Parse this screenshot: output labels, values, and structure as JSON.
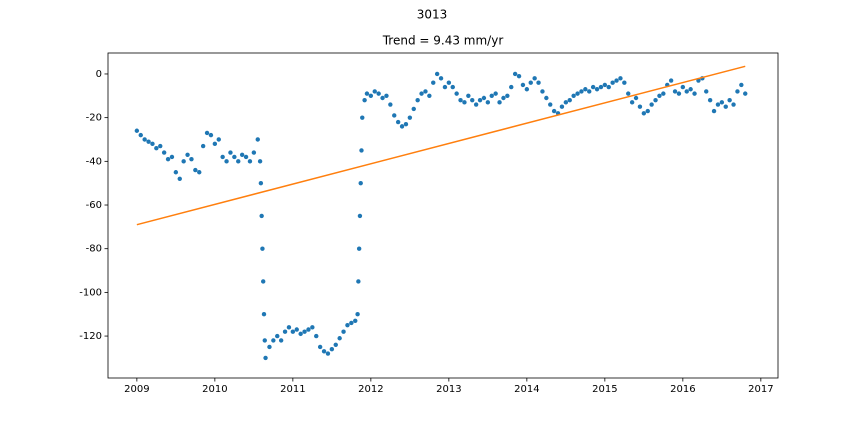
{
  "chart_data": {
    "type": "scatter",
    "suptitle": "3013",
    "title": "Trend = 9.43 mm/yr",
    "xlim": [
      2008.63,
      2017.22
    ],
    "ylim": [
      -139.2,
      9.6
    ],
    "xticks": [
      2009,
      2010,
      2011,
      2012,
      2013,
      2014,
      2015,
      2016,
      2017
    ],
    "yticks": [
      -120,
      -100,
      -80,
      -60,
      -40,
      -20,
      0
    ],
    "grid": false,
    "series": [
      {
        "kind": "points",
        "color": "#1f77b4",
        "x": [
          2009.0,
          2009.05,
          2009.1,
          2009.15,
          2009.2,
          2009.25,
          2009.3,
          2009.35,
          2009.4,
          2009.45,
          2009.5,
          2009.55,
          2009.6,
          2009.65,
          2009.7,
          2009.75,
          2009.8,
          2009.85,
          2009.9,
          2009.95,
          2010.0,
          2010.05,
          2010.1,
          2010.15,
          2010.2,
          2010.25,
          2010.3,
          2010.35,
          2010.4,
          2010.45,
          2010.5,
          2010.55,
          2010.58,
          2010.59,
          2010.6,
          2010.61,
          2010.62,
          2010.63,
          2010.64,
          2010.65,
          2010.7,
          2010.75,
          2010.8,
          2010.85,
          2010.9,
          2010.95,
          2011.0,
          2011.05,
          2011.1,
          2011.15,
          2011.2,
          2011.25,
          2011.3,
          2011.35,
          2011.4,
          2011.45,
          2011.5,
          2011.55,
          2011.6,
          2011.65,
          2011.7,
          2011.75,
          2011.8,
          2011.83,
          2011.84,
          2011.85,
          2011.86,
          2011.87,
          2011.88,
          2011.89,
          2011.92,
          2011.95,
          2012.0,
          2012.05,
          2012.1,
          2012.15,
          2012.2,
          2012.25,
          2012.3,
          2012.35,
          2012.4,
          2012.45,
          2012.5,
          2012.55,
          2012.6,
          2012.65,
          2012.7,
          2012.75,
          2012.8,
          2012.85,
          2012.9,
          2012.95,
          2013.0,
          2013.05,
          2013.1,
          2013.15,
          2013.2,
          2013.25,
          2013.3,
          2013.35,
          2013.4,
          2013.45,
          2013.5,
          2013.55,
          2013.6,
          2013.65,
          2013.7,
          2013.75,
          2013.8,
          2013.85,
          2013.9,
          2013.95,
          2014.0,
          2014.05,
          2014.1,
          2014.15,
          2014.2,
          2014.25,
          2014.3,
          2014.35,
          2014.4,
          2014.45,
          2014.5,
          2014.55,
          2014.6,
          2014.65,
          2014.7,
          2014.75,
          2014.8,
          2014.85,
          2014.9,
          2014.95,
          2015.0,
          2015.05,
          2015.1,
          2015.15,
          2015.2,
          2015.25,
          2015.3,
          2015.35,
          2015.4,
          2015.45,
          2015.5,
          2015.55,
          2015.6,
          2015.65,
          2015.7,
          2015.75,
          2015.8,
          2015.85,
          2015.9,
          2015.95,
          2016.0,
          2016.05,
          2016.1,
          2016.15,
          2016.2,
          2016.25,
          2016.3,
          2016.35,
          2016.4,
          2016.45,
          2016.5,
          2016.55,
          2016.6,
          2016.65,
          2016.7,
          2016.75,
          2016.8
        ],
        "values": [
          -26,
          -28,
          -30,
          -31,
          -32,
          -34,
          -33,
          -36,
          -39,
          -38,
          -45,
          -48,
          -40,
          -37,
          -39,
          -44,
          -45,
          -33,
          -27,
          -28,
          -32,
          -30,
          -38,
          -40,
          -36,
          -38,
          -40,
          -37,
          -38,
          -40,
          -36,
          -30,
          -40,
          -50,
          -65,
          -80,
          -95,
          -110,
          -122,
          -130,
          -125,
          -122,
          -120,
          -122,
          -118,
          -116,
          -118,
          -117,
          -119,
          -118,
          -117,
          -116,
          -120,
          -125,
          -127,
          -128,
          -126,
          -124,
          -121,
          -118,
          -115,
          -114,
          -113,
          -110,
          -95,
          -80,
          -65,
          -50,
          -35,
          -20,
          -12,
          -9,
          -10,
          -8,
          -9,
          -11,
          -10,
          -14,
          -19,
          -22,
          -24,
          -23,
          -20,
          -16,
          -12,
          -9,
          -8,
          -10,
          -4,
          0,
          -2,
          -6,
          -4,
          -6,
          -9,
          -12,
          -13,
          -10,
          -12,
          -14,
          -12,
          -11,
          -13,
          -10,
          -9,
          -13,
          -11,
          -10,
          -6,
          0,
          -1,
          -5,
          -7,
          -4,
          -2,
          -4,
          -8,
          -11,
          -14,
          -17,
          -18,
          -15,
          -13,
          -12,
          -10,
          -9,
          -8,
          -7,
          -8,
          -6,
          -7,
          -6,
          -5,
          -6,
          -4,
          -3,
          -2,
          -4,
          -9,
          -13,
          -11,
          -15,
          -18,
          -17,
          -14,
          -12,
          -10,
          -9,
          -5,
          -3,
          -8,
          -9,
          -6,
          -8,
          -7,
          -9,
          -3,
          -2,
          -8,
          -12,
          -17,
          -14,
          -13,
          -15,
          -12,
          -14,
          -8,
          -5,
          -9
        ]
      },
      {
        "kind": "line",
        "color": "#ff7f0e",
        "x": [
          2009.0,
          2016.8
        ],
        "values": [
          -69,
          3.5
        ]
      }
    ]
  }
}
